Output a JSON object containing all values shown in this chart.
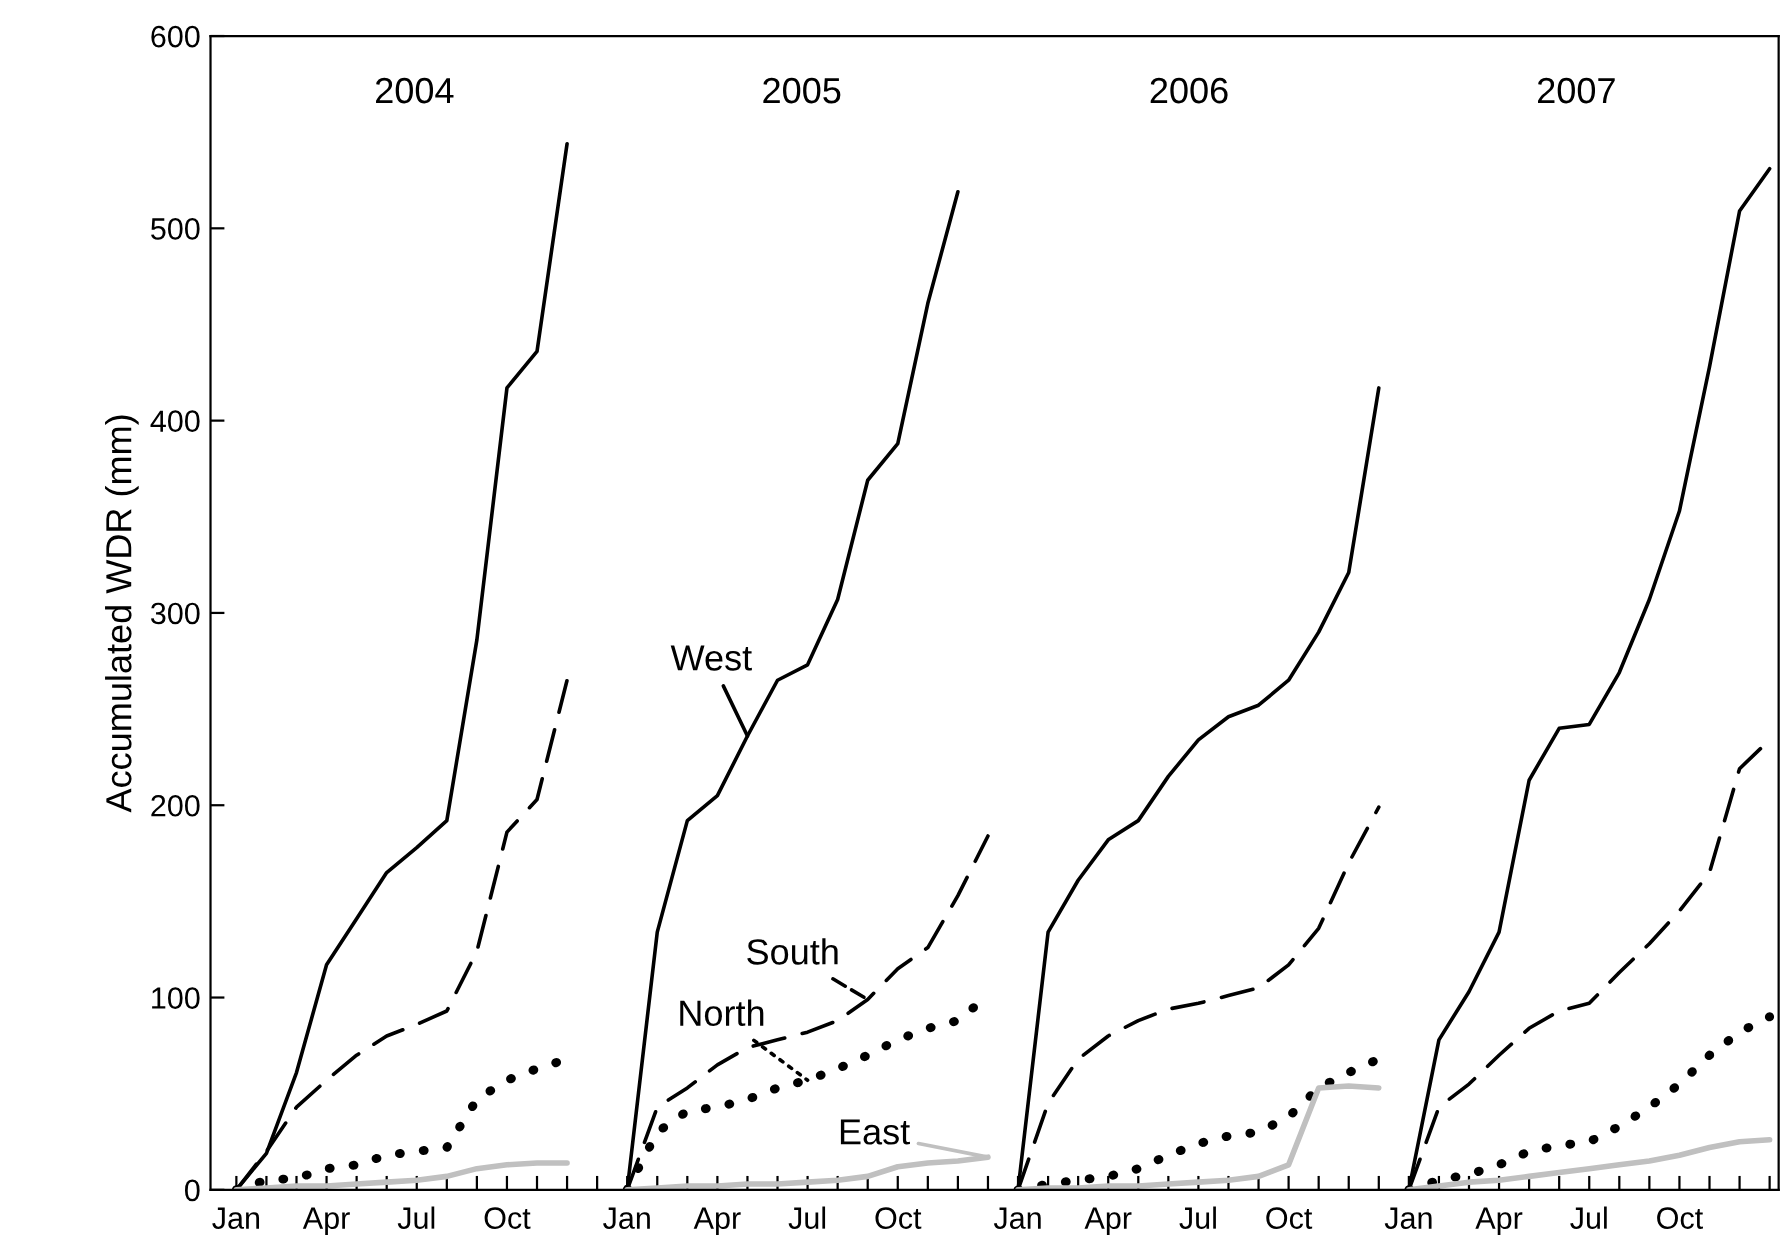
{
  "chart_data": {
    "type": "line",
    "ylabel": "Accumulated WDR (mm)",
    "annotations": [
      "2004",
      "2005",
      "2006",
      "2007"
    ],
    "categories": [
      "Jan",
      null,
      null,
      "Apr",
      null,
      null,
      "Jul",
      null,
      null,
      "Oct",
      null,
      null,
      null,
      "Jan",
      null,
      null,
      "Apr",
      null,
      null,
      "Jul",
      null,
      null,
      "Oct",
      null,
      null,
      null,
      "Jan",
      null,
      null,
      "Apr",
      null,
      null,
      "Jul",
      null,
      null,
      "Oct",
      null,
      null,
      null,
      "Jan",
      null,
      null,
      "Apr",
      null,
      null,
      "Jul",
      null,
      null,
      "Oct",
      null,
      null,
      null
    ],
    "series": [
      {
        "color": "#000000",
        "line_style": "solid",
        "values": [
          0,
          19,
          61,
          117,
          141,
          165,
          178,
          192,
          286,
          417,
          436,
          544,
          null,
          null,
          null,
          null,
          null,
          null,
          null,
          null,
          null,
          null,
          null,
          null,
          null,
          null,
          null,
          null,
          null,
          null,
          null,
          null,
          null,
          null,
          null,
          null,
          null,
          null,
          null,
          null,
          null,
          null,
          null,
          null,
          null,
          null,
          null,
          null,
          null,
          null,
          null,
          null
        ]
      },
      {
        "color": "#000000",
        "line_style": "dashed",
        "values": [
          0,
          20,
          43,
          57,
          70,
          80,
          86,
          93,
          124,
          186,
          203,
          265,
          null,
          null,
          null,
          null,
          null,
          null,
          null,
          null,
          null,
          null,
          null,
          null,
          null,
          null,
          null,
          null,
          null,
          null,
          null,
          null,
          null,
          null,
          null,
          null,
          null,
          null,
          null,
          null,
          null,
          null,
          null,
          null,
          null,
          null,
          null,
          null,
          null,
          null,
          null,
          null
        ]
      },
      {
        "color": "#000000",
        "line_style": "dotted",
        "values": [
          0,
          5,
          6,
          11,
          13,
          18,
          20,
          22,
          47,
          57,
          63,
          68,
          null,
          null,
          null,
          null,
          null,
          null,
          null,
          null,
          null,
          null,
          null,
          null,
          null,
          null,
          null,
          null,
          null,
          null,
          null,
          null,
          null,
          null,
          null,
          null,
          null,
          null,
          null,
          null,
          null,
          null,
          null,
          null,
          null,
          null,
          null,
          null,
          null,
          null,
          null,
          null
        ]
      },
      {
        "color": "#c0c0c0",
        "line_style": "solid",
        "values": [
          0,
          1,
          2,
          2,
          3,
          4,
          5,
          7,
          11,
          13,
          14,
          14,
          null,
          null,
          null,
          null,
          null,
          null,
          null,
          null,
          null,
          null,
          null,
          null,
          null,
          null,
          null,
          null,
          null,
          null,
          null,
          null,
          null,
          null,
          null,
          null,
          null,
          null,
          null,
          null,
          null,
          null,
          null,
          null,
          null,
          null,
          null,
          null,
          null,
          null,
          null,
          null
        ]
      },
      {
        "name": "West",
        "color": "#000000",
        "line_style": "solid",
        "values": [
          null,
          null,
          null,
          null,
          null,
          null,
          null,
          null,
          null,
          null,
          null,
          null,
          null,
          0,
          134,
          192,
          205,
          236,
          265,
          273,
          307,
          369,
          388,
          461,
          519,
          null,
          null,
          null,
          null,
          null,
          null,
          null,
          null,
          null,
          null,
          null,
          null,
          null,
          null,
          null,
          null,
          null,
          null,
          null,
          null,
          null,
          null,
          null,
          null,
          null,
          null,
          null
        ]
      },
      {
        "name": "South",
        "color": "#000000",
        "line_style": "dashed",
        "values": [
          null,
          null,
          null,
          null,
          null,
          null,
          null,
          null,
          null,
          null,
          null,
          null,
          null,
          0,
          43,
          53,
          65,
          74,
          78,
          82,
          88,
          99,
          115,
          126,
          153,
          184,
          null,
          null,
          null,
          null,
          null,
          null,
          null,
          null,
          null,
          null,
          null,
          null,
          null,
          null,
          null,
          null,
          null,
          null,
          null,
          null,
          null,
          null,
          null,
          null,
          null,
          null
        ]
      },
      {
        "name": "North",
        "color": "#000000",
        "line_style": "dotted",
        "values": [
          null,
          null,
          null,
          null,
          null,
          null,
          null,
          null,
          null,
          null,
          null,
          null,
          null,
          0,
          30,
          41,
          43,
          47,
          53,
          57,
          63,
          70,
          78,
          84,
          88,
          101,
          null,
          null,
          null,
          null,
          null,
          null,
          null,
          null,
          null,
          null,
          null,
          null,
          null,
          null,
          null,
          null,
          null,
          null,
          null,
          null,
          null,
          null,
          null,
          null,
          null,
          null
        ]
      },
      {
        "name": "East",
        "color": "#c0c0c0",
        "line_style": "solid",
        "values": [
          null,
          null,
          null,
          null,
          null,
          null,
          null,
          null,
          null,
          null,
          null,
          null,
          null,
          0,
          1,
          2,
          2,
          3,
          3,
          4,
          5,
          7,
          12,
          14,
          15,
          17,
          null,
          null,
          null,
          null,
          null,
          null,
          null,
          null,
          null,
          null,
          null,
          null,
          null,
          null,
          null,
          null,
          null,
          null,
          null,
          null,
          null,
          null,
          null,
          null,
          null,
          null
        ]
      },
      {
        "color": "#000000",
        "line_style": "solid",
        "values": [
          null,
          null,
          null,
          null,
          null,
          null,
          null,
          null,
          null,
          null,
          null,
          null,
          null,
          null,
          null,
          null,
          null,
          null,
          null,
          null,
          null,
          null,
          null,
          null,
          null,
          null,
          0,
          134,
          161,
          182,
          192,
          215,
          234,
          246,
          252,
          265,
          290,
          321,
          417,
          null,
          null,
          null,
          null,
          null,
          null,
          null,
          null,
          null,
          null,
          null,
          null,
          null
        ]
      },
      {
        "color": "#000000",
        "line_style": "dashed",
        "values": [
          null,
          null,
          null,
          null,
          null,
          null,
          null,
          null,
          null,
          null,
          null,
          null,
          null,
          null,
          null,
          null,
          null,
          null,
          null,
          null,
          null,
          null,
          null,
          null,
          null,
          null,
          0,
          45,
          68,
          80,
          88,
          94,
          97,
          101,
          105,
          117,
          136,
          170,
          199,
          null,
          null,
          null,
          null,
          null,
          null,
          null,
          null,
          null,
          null,
          null,
          null,
          null
        ]
      },
      {
        "color": "#000000",
        "line_style": "dotted",
        "values": [
          null,
          null,
          null,
          null,
          null,
          null,
          null,
          null,
          null,
          null,
          null,
          null,
          null,
          null,
          null,
          null,
          null,
          null,
          null,
          null,
          null,
          null,
          null,
          null,
          null,
          null,
          0,
          3,
          5,
          7,
          11,
          18,
          24,
          28,
          30,
          38,
          53,
          61,
          68,
          null,
          null,
          null,
          null,
          null,
          null,
          null,
          null,
          null,
          null,
          null,
          null,
          null
        ]
      },
      {
        "color": "#c0c0c0",
        "line_style": "solid",
        "values": [
          null,
          null,
          null,
          null,
          null,
          null,
          null,
          null,
          null,
          null,
          null,
          null,
          null,
          null,
          null,
          null,
          null,
          null,
          null,
          null,
          null,
          null,
          null,
          null,
          null,
          null,
          0,
          1,
          1,
          2,
          2,
          3,
          4,
          5,
          7,
          13,
          53,
          54,
          53,
          null,
          null,
          null,
          null,
          null,
          null,
          null,
          null,
          null,
          null,
          null,
          null,
          null
        ]
      },
      {
        "color": "#000000",
        "line_style": "solid",
        "values": [
          null,
          null,
          null,
          null,
          null,
          null,
          null,
          null,
          null,
          null,
          null,
          null,
          null,
          null,
          null,
          null,
          null,
          null,
          null,
          null,
          null,
          null,
          null,
          null,
          null,
          null,
          null,
          null,
          null,
          null,
          null,
          null,
          null,
          null,
          null,
          null,
          null,
          null,
          null,
          0,
          78,
          103,
          134,
          213,
          240,
          242,
          269,
          307,
          353,
          428,
          509,
          531
        ]
      },
      {
        "color": "#000000",
        "line_style": "dashed",
        "values": [
          null,
          null,
          null,
          null,
          null,
          null,
          null,
          null,
          null,
          null,
          null,
          null,
          null,
          null,
          null,
          null,
          null,
          null,
          null,
          null,
          null,
          null,
          null,
          null,
          null,
          null,
          null,
          null,
          null,
          null,
          null,
          null,
          null,
          null,
          null,
          null,
          null,
          null,
          null,
          0,
          43,
          55,
          70,
          84,
          93,
          97,
          113,
          128,
          145,
          165,
          219,
          234
        ]
      },
      {
        "color": "#000000",
        "line_style": "dotted",
        "values": [
          null,
          null,
          null,
          null,
          null,
          null,
          null,
          null,
          null,
          null,
          null,
          null,
          null,
          null,
          null,
          null,
          null,
          null,
          null,
          null,
          null,
          null,
          null,
          null,
          null,
          null,
          null,
          null,
          null,
          null,
          null,
          null,
          null,
          null,
          null,
          null,
          null,
          null,
          null,
          0,
          5,
          8,
          13,
          20,
          23,
          25,
          33,
          43,
          55,
          70,
          82,
          90
        ]
      },
      {
        "color": "#c0c0c0",
        "line_style": "solid",
        "values": [
          null,
          null,
          null,
          null,
          null,
          null,
          null,
          null,
          null,
          null,
          null,
          null,
          null,
          null,
          null,
          null,
          null,
          null,
          null,
          null,
          null,
          null,
          null,
          null,
          null,
          null,
          null,
          null,
          null,
          null,
          null,
          null,
          null,
          null,
          null,
          null,
          null,
          null,
          null,
          0,
          2,
          4,
          5,
          7,
          9,
          11,
          13,
          15,
          18,
          22,
          25,
          26
        ]
      }
    ],
    "ylim": [
      0,
      600
    ],
    "yticks": [
      0,
      100,
      200,
      300,
      400,
      500,
      600
    ],
    "grid": false,
    "legend": "bottom"
  }
}
